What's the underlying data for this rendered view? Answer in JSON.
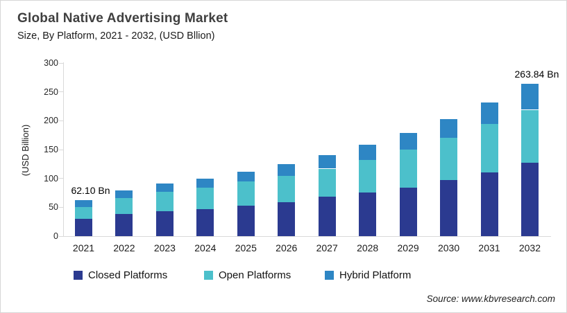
{
  "header": {
    "title": "Global Native Advertising Market",
    "subtitle": "Size, By Platform, 2021 - 2032, (USD Bllion)"
  },
  "chart_data": {
    "type": "bar",
    "stacked": true,
    "title": "Global Native Advertising Market",
    "xlabel": "",
    "ylabel": "(USD Billion)",
    "ylim": [
      0,
      300
    ],
    "yticks": [
      0,
      50,
      100,
      150,
      200,
      250,
      300
    ],
    "grid": false,
    "legend_position": "bottom",
    "categories": [
      "2021",
      "2022",
      "2023",
      "2024",
      "2025",
      "2026",
      "2027",
      "2028",
      "2029",
      "2030",
      "2031",
      "2032"
    ],
    "series": [
      {
        "name": "Closed Platforms",
        "color": "#2B3A90",
        "values": [
          30,
          38,
          43,
          47,
          53,
          59,
          68,
          76,
          84,
          97,
          110,
          127
        ]
      },
      {
        "name": "Open Platforms",
        "color": "#4CC0CB",
        "values": [
          21,
          28,
          34,
          37,
          42,
          45,
          49,
          56,
          66,
          73,
          84,
          92
        ]
      },
      {
        "name": "Hybrid Platform",
        "color": "#2E86C4",
        "values": [
          11.1,
          13,
          14,
          16,
          17,
          21,
          23,
          27,
          29,
          33,
          38,
          44.84
        ]
      }
    ],
    "totals": [
      62.1,
      79,
      91,
      100,
      112,
      125,
      140,
      159,
      179,
      203,
      232,
      263.84
    ],
    "annotations": [
      {
        "text": "62.10 Bn",
        "category_index": 0
      },
      {
        "text": "263.84 Bn",
        "category_index": 11
      }
    ]
  },
  "source": {
    "text": "Source: www.kbvresearch.com"
  }
}
